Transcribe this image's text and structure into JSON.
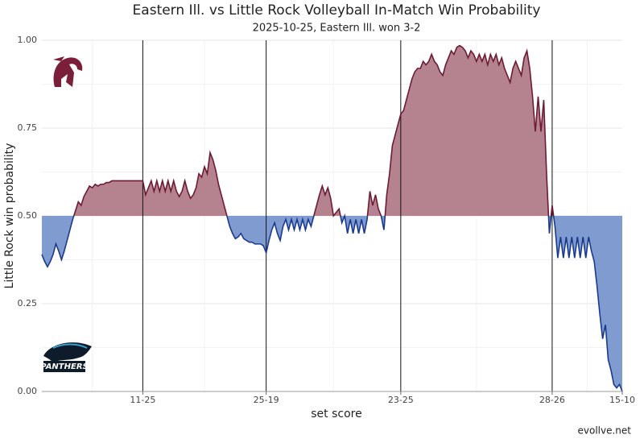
{
  "chart_data": {
    "type": "line",
    "title": "Eastern Ill. vs Little Rock Volleyball In-Match Win Probability",
    "subtitle": "2025-10-25, Eastern Ill. won 3-2",
    "x_label": "set score",
    "y_label": "Little Rock win probability",
    "source": "evollve.net",
    "baseline": 0.5,
    "above_color": "#6e1a33",
    "above_fill": "#b4838f",
    "below_color": "#1a3a8f",
    "below_fill": "#7f9bcf",
    "grid": true,
    "xlim": [
      0,
      207
    ],
    "ylim": [
      0,
      1
    ],
    "xticks": [
      {
        "value": 36,
        "label": "11-25"
      },
      {
        "value": 80,
        "label": "25-19"
      },
      {
        "value": 128,
        "label": "23-25"
      },
      {
        "value": 182,
        "label": "28-26"
      },
      {
        "value": 207,
        "label": "15-10"
      }
    ],
    "yticks": [
      {
        "value": 0,
        "label": "0.00"
      },
      {
        "value": 0.25,
        "label": "0.25"
      },
      {
        "value": 0.5,
        "label": "0.50"
      },
      {
        "value": 0.75,
        "label": "0.75"
      },
      {
        "value": 1,
        "label": "1.00"
      }
    ],
    "x": [
      0,
      1,
      2,
      3,
      4,
      5,
      6,
      7,
      8,
      9,
      10,
      11,
      12,
      13,
      14,
      15,
      16,
      17,
      18,
      19,
      20,
      21,
      22,
      23,
      24,
      25,
      26,
      27,
      28,
      29,
      30,
      31,
      32,
      33,
      34,
      35,
      36,
      37,
      38,
      39,
      40,
      41,
      42,
      43,
      44,
      45,
      46,
      47,
      48,
      49,
      50,
      51,
      52,
      53,
      54,
      55,
      56,
      57,
      58,
      59,
      60,
      61,
      62,
      63,
      64,
      65,
      66,
      67,
      68,
      69,
      70,
      71,
      72,
      73,
      74,
      75,
      76,
      77,
      78,
      79,
      80,
      81,
      82,
      83,
      84,
      85,
      86,
      87,
      88,
      89,
      90,
      91,
      92,
      93,
      94,
      95,
      96,
      97,
      98,
      99,
      100,
      101,
      102,
      103,
      104,
      105,
      106,
      107,
      108,
      109,
      110,
      111,
      112,
      113,
      114,
      115,
      116,
      117,
      118,
      119,
      120,
      121,
      122,
      123,
      124,
      125,
      126,
      127,
      128,
      129,
      130,
      131,
      132,
      133,
      134,
      135,
      136,
      137,
      138,
      139,
      140,
      141,
      142,
      143,
      144,
      145,
      146,
      147,
      148,
      149,
      150,
      151,
      152,
      153,
      154,
      155,
      156,
      157,
      158,
      159,
      160,
      161,
      162,
      163,
      164,
      165,
      166,
      167,
      168,
      169,
      170,
      171,
      172,
      173,
      174,
      175,
      176,
      177,
      178,
      179,
      180,
      181,
      182,
      183,
      184,
      185,
      186,
      187,
      188,
      189,
      190,
      191,
      192,
      193,
      194,
      195,
      196,
      197,
      198,
      199,
      200,
      201,
      202,
      203,
      204,
      205,
      206,
      207
    ],
    "values": [
      0.39,
      0.37,
      0.355,
      0.37,
      0.39,
      0.42,
      0.4,
      0.375,
      0.4,
      0.43,
      0.46,
      0.49,
      0.515,
      0.54,
      0.53,
      0.555,
      0.57,
      0.585,
      0.58,
      0.59,
      0.585,
      0.59,
      0.59,
      0.595,
      0.595,
      0.6,
      0.6,
      0.6,
      0.6,
      0.6,
      0.6,
      0.6,
      0.6,
      0.6,
      0.6,
      0.6,
      0.6,
      0.56,
      0.58,
      0.6,
      0.57,
      0.6,
      0.57,
      0.6,
      0.57,
      0.6,
      0.57,
      0.6,
      0.57,
      0.555,
      0.57,
      0.6,
      0.57,
      0.55,
      0.56,
      0.58,
      0.62,
      0.61,
      0.64,
      0.62,
      0.68,
      0.66,
      0.63,
      0.59,
      0.56,
      0.53,
      0.5,
      0.47,
      0.45,
      0.435,
      0.44,
      0.45,
      0.435,
      0.43,
      0.425,
      0.425,
      0.42,
      0.42,
      0.42,
      0.415,
      0.395,
      0.43,
      0.46,
      0.48,
      0.45,
      0.43,
      0.47,
      0.49,
      0.46,
      0.49,
      0.46,
      0.49,
      0.46,
      0.49,
      0.46,
      0.49,
      0.47,
      0.5,
      0.53,
      0.56,
      0.585,
      0.56,
      0.58,
      0.55,
      0.5,
      0.51,
      0.52,
      0.48,
      0.5,
      0.45,
      0.49,
      0.45,
      0.49,
      0.45,
      0.49,
      0.45,
      0.49,
      0.57,
      0.53,
      0.56,
      0.52,
      0.5,
      0.46,
      0.56,
      0.62,
      0.7,
      0.73,
      0.76,
      0.79,
      0.8,
      0.83,
      0.86,
      0.89,
      0.91,
      0.92,
      0.92,
      0.94,
      0.93,
      0.94,
      0.96,
      0.94,
      0.93,
      0.91,
      0.9,
      0.93,
      0.95,
      0.97,
      0.96,
      0.98,
      0.985,
      0.98,
      0.97,
      0.95,
      0.97,
      0.96,
      0.94,
      0.96,
      0.94,
      0.96,
      0.93,
      0.96,
      0.94,
      0.96,
      0.93,
      0.95,
      0.92,
      0.9,
      0.88,
      0.92,
      0.94,
      0.92,
      0.9,
      0.95,
      0.97,
      0.92,
      0.84,
      0.74,
      0.84,
      0.74,
      0.83,
      0.62,
      0.45,
      0.53,
      0.47,
      0.38,
      0.44,
      0.38,
      0.44,
      0.38,
      0.44,
      0.38,
      0.44,
      0.38,
      0.44,
      0.38,
      0.44,
      0.4,
      0.37,
      0.3,
      0.22,
      0.15,
      0.19,
      0.09,
      0.06,
      0.02,
      0.01,
      0.02,
      0.0
    ]
  }
}
